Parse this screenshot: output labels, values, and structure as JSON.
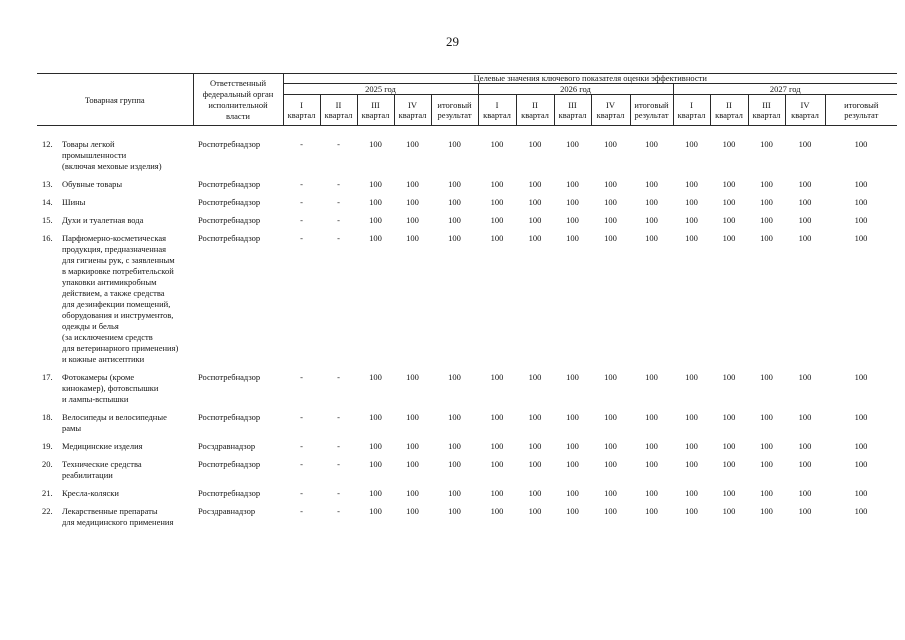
{
  "page": {
    "number": "29"
  },
  "table": {
    "header": {
      "product_group": "Товарная группа",
      "authority": "Ответственный\nфедеральный орган\nисполнительной\nвласти",
      "kpi_title": "Целевые значения ключевого показателя оценки эффективности",
      "years": [
        "2025 год",
        "2026 год",
        "2027 год"
      ],
      "period_cols": [
        "I\nквартал",
        "II\nквартал",
        "III\nквартал",
        "IV\nквартал",
        "итоговый\nрезультат"
      ]
    },
    "rows": [
      {
        "num": "12.",
        "name": "Товары легкой\nпромышленности\n(включая меховые изделия)",
        "authority": "Роспотребнадзор",
        "values": [
          "-",
          "-",
          "100",
          "100",
          "100",
          "100",
          "100",
          "100",
          "100",
          "100",
          "100",
          "100",
          "100",
          "100",
          "100"
        ]
      },
      {
        "num": "13.",
        "name": "Обувные товары",
        "authority": "Роспотребнадзор",
        "values": [
          "-",
          "-",
          "100",
          "100",
          "100",
          "100",
          "100",
          "100",
          "100",
          "100",
          "100",
          "100",
          "100",
          "100",
          "100"
        ]
      },
      {
        "num": "14.",
        "name": "Шины",
        "authority": "Роспотребнадзор",
        "values": [
          "-",
          "-",
          "100",
          "100",
          "100",
          "100",
          "100",
          "100",
          "100",
          "100",
          "100",
          "100",
          "100",
          "100",
          "100"
        ]
      },
      {
        "num": "15.",
        "name": "Духи и туалетная вода",
        "authority": "Роспотребнадзор",
        "values": [
          "-",
          "-",
          "100",
          "100",
          "100",
          "100",
          "100",
          "100",
          "100",
          "100",
          "100",
          "100",
          "100",
          "100",
          "100"
        ]
      },
      {
        "num": "16.",
        "name": "Парфюмерно-косметическая\nпродукция, предназначенная\nдля гигиены рук, с заявленным\nв маркировке потребительской\nупаковки антимикробным\nдействием, а также средства\nдля дезинфекции помещений,\nоборудования и инструментов,\nодежды и белья\n(за исключением средств\nдля ветеринарного применения)\nи кожные антисептики",
        "authority": "Роспотребнадзор",
        "values": [
          "-",
          "-",
          "100",
          "100",
          "100",
          "100",
          "100",
          "100",
          "100",
          "100",
          "100",
          "100",
          "100",
          "100",
          "100"
        ]
      },
      {
        "num": "17.",
        "name": "Фотокамеры (кроме\nкинокамер), фотовспышки\nи лампы-вспышки",
        "authority": "Роспотребнадзор",
        "values": [
          "-",
          "-",
          "100",
          "100",
          "100",
          "100",
          "100",
          "100",
          "100",
          "100",
          "100",
          "100",
          "100",
          "100",
          "100"
        ]
      },
      {
        "num": "18.",
        "name": "Велосипеды и велосипедные\nрамы",
        "authority": "Роспотребнадзор",
        "values": [
          "-",
          "-",
          "100",
          "100",
          "100",
          "100",
          "100",
          "100",
          "100",
          "100",
          "100",
          "100",
          "100",
          "100",
          "100"
        ]
      },
      {
        "num": "19.",
        "name": "Медицинские изделия",
        "authority": "Росздравнадзор",
        "values": [
          "-",
          "-",
          "100",
          "100",
          "100",
          "100",
          "100",
          "100",
          "100",
          "100",
          "100",
          "100",
          "100",
          "100",
          "100"
        ]
      },
      {
        "num": "20.",
        "name": "Технические средства\nреабилитации",
        "authority": "Роспотребнадзор",
        "values": [
          "-",
          "-",
          "100",
          "100",
          "100",
          "100",
          "100",
          "100",
          "100",
          "100",
          "100",
          "100",
          "100",
          "100",
          "100"
        ]
      },
      {
        "num": "21.",
        "name": "Кресла-коляски",
        "authority": "Роспотребнадзор",
        "values": [
          "-",
          "-",
          "100",
          "100",
          "100",
          "100",
          "100",
          "100",
          "100",
          "100",
          "100",
          "100",
          "100",
          "100",
          "100"
        ]
      },
      {
        "num": "22.",
        "name": "Лекарственные препараты\nдля медицинского применения",
        "authority": "Росздравнадзор",
        "values": [
          "-",
          "-",
          "100",
          "100",
          "100",
          "100",
          "100",
          "100",
          "100",
          "100",
          "100",
          "100",
          "100",
          "100",
          "100"
        ]
      }
    ]
  }
}
